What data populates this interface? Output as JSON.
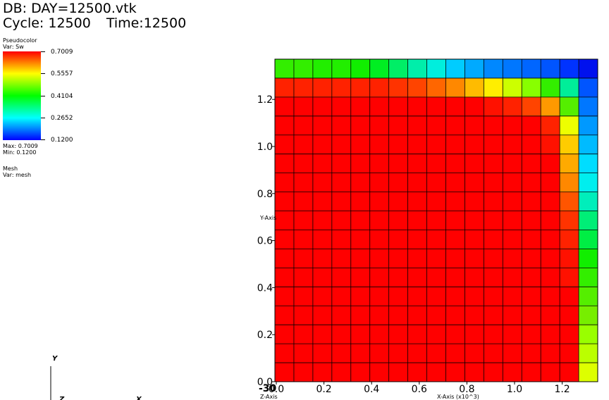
{
  "header": {
    "db_title": "DB: DAY=12500.vtk",
    "cycle_label": "Cycle: 12500",
    "time_label": "Time:12500"
  },
  "legend": {
    "plot_type": "Pseudocolor",
    "var_label": "Var: Sw",
    "ticks": [
      "0.7009",
      "0.5557",
      "0.4104",
      "0.2652",
      "0.1200"
    ],
    "max_label": "Max:  0.7009",
    "min_label": "Min:  0.1200",
    "colormap": [
      "#ff0000",
      "#ffff00",
      "#00ff00",
      "#00ffff",
      "#0000ff"
    ]
  },
  "mesh_legend": {
    "plot_type": "Mesh",
    "var_label": "Var: mesh"
  },
  "plot": {
    "x_axis_title": "X-Axis (x10^3)",
    "y_axis_title": "Y-Axis",
    "z_axis_title": "Z-Axis",
    "x_ticks": [
      "0.0",
      "0.2",
      "0.4",
      "0.6",
      "0.8",
      "1.0",
      "1.2"
    ],
    "y_ticks": [
      "0.0",
      "0.2",
      "0.4",
      "0.6",
      "0.8",
      "1.0",
      "1.2"
    ],
    "overlap_label": "-30",
    "grid_rows": 17,
    "grid_cols": 17,
    "cell_colors": [
      [
        "#33ee00",
        "#33ee00",
        "#22ee00",
        "#22ee00",
        "#11ee00",
        "#00ee22",
        "#00ee66",
        "#00eeaa",
        "#00eedd",
        "#00ccff",
        "#00aaff",
        "#0088ff",
        "#0077ff",
        "#0066ff",
        "#0055ff",
        "#0033ff",
        "#0011ee"
      ],
      [
        "#ff2200",
        "#ff2200",
        "#ff2200",
        "#ff2200",
        "#ff2200",
        "#ff2200",
        "#ff3300",
        "#ff4400",
        "#ff6600",
        "#ff8800",
        "#ffbb00",
        "#ffee00",
        "#ccff00",
        "#88ff00",
        "#33ee00",
        "#00ee99",
        "#0055ff"
      ],
      [
        "#ff0000",
        "#ff0000",
        "#ff0000",
        "#ff0000",
        "#ff0000",
        "#ff0000",
        "#ff0000",
        "#ff0000",
        "#ff0000",
        "#ff0000",
        "#ff0000",
        "#ff1100",
        "#ff2200",
        "#ff4400",
        "#ff9900",
        "#55ee00",
        "#0077ff"
      ],
      [
        "#ff0000",
        "#ff0000",
        "#ff0000",
        "#ff0000",
        "#ff0000",
        "#ff0000",
        "#ff0000",
        "#ff0000",
        "#ff0000",
        "#ff0000",
        "#ff0000",
        "#ff0000",
        "#ff0000",
        "#ff0000",
        "#ff2200",
        "#eeff00",
        "#0099ff"
      ],
      [
        "#ff0000",
        "#ff0000",
        "#ff0000",
        "#ff0000",
        "#ff0000",
        "#ff0000",
        "#ff0000",
        "#ff0000",
        "#ff0000",
        "#ff0000",
        "#ff0000",
        "#ff0000",
        "#ff0000",
        "#ff0000",
        "#ff1100",
        "#ffcc00",
        "#00bbff"
      ],
      [
        "#ff0000",
        "#ff0000",
        "#ff0000",
        "#ff0000",
        "#ff0000",
        "#ff0000",
        "#ff0000",
        "#ff0000",
        "#ff0000",
        "#ff0000",
        "#ff0000",
        "#ff0000",
        "#ff0000",
        "#ff0000",
        "#ff0000",
        "#ffaa00",
        "#00ddff"
      ],
      [
        "#ff0000",
        "#ff0000",
        "#ff0000",
        "#ff0000",
        "#ff0000",
        "#ff0000",
        "#ff0000",
        "#ff0000",
        "#ff0000",
        "#ff0000",
        "#ff0000",
        "#ff0000",
        "#ff0000",
        "#ff0000",
        "#ff0000",
        "#ff8800",
        "#00eeee"
      ],
      [
        "#ff0000",
        "#ff0000",
        "#ff0000",
        "#ff0000",
        "#ff0000",
        "#ff0000",
        "#ff0000",
        "#ff0000",
        "#ff0000",
        "#ff0000",
        "#ff0000",
        "#ff0000",
        "#ff0000",
        "#ff0000",
        "#ff0000",
        "#ff5500",
        "#00eebb"
      ],
      [
        "#ff0000",
        "#ff0000",
        "#ff0000",
        "#ff0000",
        "#ff0000",
        "#ff0000",
        "#ff0000",
        "#ff0000",
        "#ff0000",
        "#ff0000",
        "#ff0000",
        "#ff0000",
        "#ff0000",
        "#ff0000",
        "#ff0000",
        "#ff3300",
        "#00ee77"
      ],
      [
        "#ff0000",
        "#ff0000",
        "#ff0000",
        "#ff0000",
        "#ff0000",
        "#ff0000",
        "#ff0000",
        "#ff0000",
        "#ff0000",
        "#ff0000",
        "#ff0000",
        "#ff0000",
        "#ff0000",
        "#ff0000",
        "#ff0000",
        "#ff2200",
        "#00ee44"
      ],
      [
        "#ff0000",
        "#ff0000",
        "#ff0000",
        "#ff0000",
        "#ff0000",
        "#ff0000",
        "#ff0000",
        "#ff0000",
        "#ff0000",
        "#ff0000",
        "#ff0000",
        "#ff0000",
        "#ff0000",
        "#ff0000",
        "#ff0000",
        "#ff1100",
        "#11ee00"
      ],
      [
        "#ff0000",
        "#ff0000",
        "#ff0000",
        "#ff0000",
        "#ff0000",
        "#ff0000",
        "#ff0000",
        "#ff0000",
        "#ff0000",
        "#ff0000",
        "#ff0000",
        "#ff0000",
        "#ff0000",
        "#ff0000",
        "#ff0000",
        "#ff1100",
        "#33ee00"
      ],
      [
        "#ff0000",
        "#ff0000",
        "#ff0000",
        "#ff0000",
        "#ff0000",
        "#ff0000",
        "#ff0000",
        "#ff0000",
        "#ff0000",
        "#ff0000",
        "#ff0000",
        "#ff0000",
        "#ff0000",
        "#ff0000",
        "#ff0000",
        "#ff0000",
        "#55ee00"
      ],
      [
        "#ff0000",
        "#ff0000",
        "#ff0000",
        "#ff0000",
        "#ff0000",
        "#ff0000",
        "#ff0000",
        "#ff0000",
        "#ff0000",
        "#ff0000",
        "#ff0000",
        "#ff0000",
        "#ff0000",
        "#ff0000",
        "#ff0000",
        "#ff0000",
        "#77ee00"
      ],
      [
        "#ff0000",
        "#ff0000",
        "#ff0000",
        "#ff0000",
        "#ff0000",
        "#ff0000",
        "#ff0000",
        "#ff0000",
        "#ff0000",
        "#ff0000",
        "#ff0000",
        "#ff0000",
        "#ff0000",
        "#ff0000",
        "#ff0000",
        "#ff0000",
        "#99ff00"
      ],
      [
        "#ff0000",
        "#ff0000",
        "#ff0000",
        "#ff0000",
        "#ff0000",
        "#ff0000",
        "#ff0000",
        "#ff0000",
        "#ff0000",
        "#ff0000",
        "#ff0000",
        "#ff0000",
        "#ff0000",
        "#ff0000",
        "#ff0000",
        "#ff0000",
        "#bbff00"
      ],
      [
        "#ff0000",
        "#ff0000",
        "#ff0000",
        "#ff0000",
        "#ff0000",
        "#ff0000",
        "#ff0000",
        "#ff0000",
        "#ff0000",
        "#ff0000",
        "#ff0000",
        "#ff0000",
        "#ff0000",
        "#ff0000",
        "#ff0000",
        "#ff0000",
        "#ddff00"
      ]
    ]
  },
  "triad": {
    "y_label": "Y",
    "x_label": "X",
    "z_label": "Z"
  }
}
